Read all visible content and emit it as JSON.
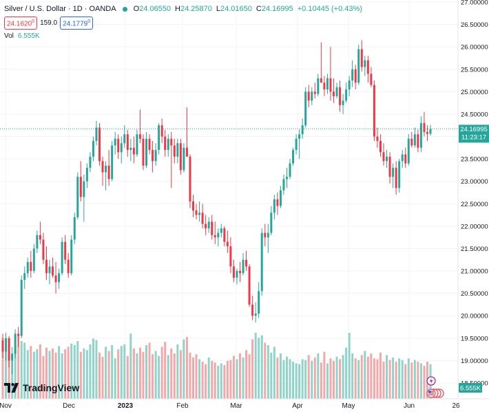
{
  "header": {
    "symbol": "Silver / U.S. Dollar · 1D · OANDA",
    "open_label": "O",
    "open": "24.06550",
    "high_label": "H",
    "high": "24.25870",
    "low_label": "L",
    "low": "24.01650",
    "close_label": "C",
    "close": "24.16995",
    "change": "+0.10445 (+0.43%)",
    "sell_price": "24.1620",
    "sell_sup": "0",
    "spread": "159.0",
    "buy_price": "24.1779",
    "buy_sup": "0"
  },
  "volume_legend": {
    "label": "Vol",
    "value": "6.555K"
  },
  "price_tag": {
    "price": "24.16995",
    "countdown": "11:23:17"
  },
  "volume_tag": "6.555K",
  "logo_text": "TradingView",
  "colors": {
    "up": "#26a69a",
    "down": "#f23645",
    "up_vol": "#8fd3c9",
    "down_vol": "#f4a7a8",
    "grid": "#f0f3fa",
    "text": "#131722"
  },
  "chart_data": {
    "type": "candlestick",
    "y_ticks": [
      "27.00000",
      "26.50000",
      "26.00000",
      "25.50000",
      "25.00000",
      "24.50000",
      "24.00000",
      "23.50000",
      "23.00000",
      "22.50000",
      "22.00000",
      "21.50000",
      "21.00000",
      "20.50000",
      "20.00000",
      "19.50000",
      "19.00000",
      "18.50000"
    ],
    "ylim": [
      18.5,
      27.0
    ],
    "x_ticks": [
      "Nov",
      "Dec",
      "2023",
      "Feb",
      "Mar",
      "Apr",
      "May",
      "Jun",
      "26"
    ],
    "last_price": 24.16995,
    "candles_ohlc": [
      [
        19.45,
        19.6,
        19.05,
        19.2
      ],
      [
        19.2,
        19.62,
        19.0,
        19.5
      ],
      [
        19.5,
        19.55,
        18.85,
        19.0
      ],
      [
        19.0,
        19.3,
        18.7,
        19.15
      ],
      [
        19.15,
        19.7,
        19.05,
        19.6
      ],
      [
        19.6,
        19.75,
        19.3,
        19.55
      ],
      [
        19.55,
        20.9,
        19.5,
        20.8
      ],
      [
        20.8,
        21.1,
        20.6,
        20.95
      ],
      [
        20.95,
        21.3,
        20.85,
        21.2
      ],
      [
        21.2,
        21.45,
        20.85,
        21.0
      ],
      [
        21.0,
        21.6,
        20.95,
        21.5
      ],
      [
        21.5,
        21.9,
        21.4,
        21.8
      ],
      [
        21.8,
        22.1,
        21.6,
        21.7
      ],
      [
        21.7,
        21.85,
        21.15,
        21.25
      ],
      [
        21.25,
        21.55,
        20.8,
        20.95
      ],
      [
        20.95,
        21.25,
        20.7,
        21.1
      ],
      [
        21.1,
        21.3,
        20.85,
        20.9
      ],
      [
        20.9,
        21.2,
        20.5,
        20.75
      ],
      [
        20.75,
        21.05,
        20.6,
        20.95
      ],
      [
        20.95,
        21.75,
        20.9,
        21.65
      ],
      [
        21.65,
        21.8,
        21.15,
        21.25
      ],
      [
        21.25,
        21.4,
        20.85,
        20.95
      ],
      [
        20.95,
        21.8,
        20.9,
        21.7
      ],
      [
        21.7,
        22.3,
        21.6,
        22.2
      ],
      [
        22.2,
        23.2,
        22.15,
        23.1
      ],
      [
        23.1,
        23.45,
        22.55,
        22.65
      ],
      [
        22.65,
        23.15,
        22.1,
        23.0
      ],
      [
        23.0,
        23.4,
        22.85,
        23.3
      ],
      [
        23.3,
        23.65,
        23.2,
        23.55
      ],
      [
        23.55,
        24.0,
        23.45,
        23.9
      ],
      [
        23.9,
        24.35,
        23.8,
        24.2
      ],
      [
        24.2,
        24.3,
        23.35,
        23.45
      ],
      [
        23.45,
        23.55,
        22.9,
        23.2
      ],
      [
        23.2,
        23.45,
        22.8,
        23.35
      ],
      [
        23.35,
        23.7,
        22.9,
        23.05
      ],
      [
        23.05,
        23.9,
        23.0,
        23.8
      ],
      [
        23.8,
        24.1,
        23.6,
        23.95
      ],
      [
        23.95,
        24.05,
        23.5,
        23.65
      ],
      [
        23.65,
        24.0,
        23.4,
        23.85
      ],
      [
        23.85,
        24.25,
        23.75,
        24.05
      ],
      [
        24.05,
        24.15,
        23.55,
        23.7
      ],
      [
        23.7,
        23.95,
        23.45,
        23.75
      ],
      [
        23.75,
        24.0,
        23.4,
        23.6
      ],
      [
        23.6,
        24.15,
        23.55,
        24.05
      ],
      [
        24.05,
        24.6,
        23.85,
        23.95
      ],
      [
        23.95,
        24.05,
        23.25,
        23.35
      ],
      [
        23.35,
        24.1,
        23.3,
        23.95
      ],
      [
        23.95,
        24.05,
        23.6,
        23.7
      ],
      [
        23.7,
        23.9,
        23.2,
        23.45
      ],
      [
        23.45,
        23.85,
        23.35,
        23.7
      ],
      [
        23.7,
        24.3,
        23.6,
        24.25
      ],
      [
        24.25,
        24.4,
        23.85,
        24.0
      ],
      [
        24.0,
        24.15,
        23.55,
        23.7
      ],
      [
        23.7,
        24.05,
        23.55,
        23.95
      ],
      [
        23.95,
        24.1,
        22.85,
        23.8
      ],
      [
        23.8,
        23.95,
        23.4,
        23.55
      ],
      [
        23.55,
        23.95,
        23.4,
        23.85
      ],
      [
        23.85,
        23.95,
        23.15,
        23.25
      ],
      [
        23.25,
        23.85,
        23.2,
        23.75
      ],
      [
        23.75,
        24.65,
        23.7,
        23.55
      ],
      [
        23.55,
        23.6,
        22.4,
        22.55
      ],
      [
        22.55,
        22.7,
        22.2,
        22.35
      ],
      [
        22.35,
        22.5,
        22.15,
        22.25
      ],
      [
        22.25,
        22.55,
        22.1,
        22.3
      ],
      [
        22.3,
        22.5,
        21.95,
        22.05
      ],
      [
        22.05,
        22.25,
        21.8,
        21.95
      ],
      [
        21.95,
        22.2,
        21.85,
        22.1
      ],
      [
        22.1,
        22.25,
        21.7,
        21.8
      ],
      [
        21.8,
        22.1,
        21.6,
        21.75
      ],
      [
        21.75,
        21.95,
        21.55,
        21.85
      ],
      [
        21.85,
        22.05,
        21.75,
        21.95
      ],
      [
        21.95,
        22.0,
        21.55,
        21.65
      ],
      [
        21.65,
        21.9,
        21.4,
        21.55
      ],
      [
        21.55,
        21.75,
        20.95,
        21.1
      ],
      [
        21.1,
        21.25,
        20.75,
        20.85
      ],
      [
        20.85,
        21.05,
        20.7,
        21.0
      ],
      [
        21.0,
        21.2,
        20.75,
        20.95
      ],
      [
        20.95,
        21.4,
        20.9,
        21.25
      ],
      [
        21.25,
        21.45,
        21.0,
        21.1
      ],
      [
        21.1,
        21.15,
        20.2,
        20.25
      ],
      [
        20.25,
        20.45,
        19.9,
        20.0
      ],
      [
        20.0,
        20.3,
        19.85,
        20.05
      ],
      [
        20.05,
        20.75,
        19.95,
        20.55
      ],
      [
        20.55,
        21.95,
        20.45,
        21.85
      ],
      [
        21.85,
        22.05,
        21.55,
        21.75
      ],
      [
        21.75,
        22.05,
        21.4,
        21.85
      ],
      [
        21.85,
        22.45,
        21.8,
        22.3
      ],
      [
        22.3,
        22.7,
        22.15,
        22.6
      ],
      [
        22.6,
        22.75,
        22.25,
        22.45
      ],
      [
        22.45,
        22.9,
        22.4,
        22.8
      ],
      [
        22.8,
        23.15,
        22.7,
        23.05
      ],
      [
        23.05,
        23.3,
        22.85,
        23.1
      ],
      [
        23.1,
        23.5,
        23.05,
        23.4
      ],
      [
        23.4,
        23.75,
        23.35,
        23.7
      ],
      [
        23.7,
        24.05,
        23.6,
        23.95
      ],
      [
        23.95,
        24.15,
        23.5,
        24.05
      ],
      [
        24.05,
        24.4,
        23.95,
        24.25
      ],
      [
        24.25,
        25.1,
        24.2,
        25.0
      ],
      [
        25.0,
        25.15,
        24.65,
        24.8
      ],
      [
        24.8,
        25.1,
        24.7,
        25.0
      ],
      [
        25.0,
        25.2,
        24.85,
        24.95
      ],
      [
        24.95,
        25.4,
        24.9,
        25.3
      ],
      [
        25.3,
        26.1,
        25.2,
        25.2
      ],
      [
        25.2,
        25.35,
        24.9,
        25.05
      ],
      [
        25.05,
        25.4,
        24.95,
        25.3
      ],
      [
        25.3,
        26.0,
        24.8,
        25.0
      ],
      [
        25.0,
        25.3,
        24.75,
        24.9
      ],
      [
        24.9,
        25.2,
        24.85,
        25.1
      ],
      [
        25.1,
        25.25,
        24.55,
        24.7
      ],
      [
        24.7,
        24.95,
        24.5,
        24.8
      ],
      [
        24.8,
        25.2,
        24.75,
        25.05
      ],
      [
        25.05,
        25.35,
        24.9,
        25.25
      ],
      [
        25.25,
        25.7,
        25.1,
        25.5
      ],
      [
        25.5,
        25.6,
        25.05,
        25.2
      ],
      [
        25.2,
        26.05,
        25.15,
        25.95
      ],
      [
        25.95,
        26.15,
        25.45,
        25.55
      ],
      [
        25.55,
        25.8,
        25.35,
        25.7
      ],
      [
        25.7,
        25.8,
        25.2,
        25.4
      ],
      [
        25.4,
        25.55,
        25.1,
        25.15
      ],
      [
        25.15,
        25.25,
        23.9,
        24.0
      ],
      [
        24.0,
        24.2,
        23.75,
        23.9
      ],
      [
        23.9,
        24.05,
        23.55,
        23.65
      ],
      [
        23.65,
        23.85,
        23.35,
        23.45
      ],
      [
        23.45,
        23.7,
        23.3,
        23.55
      ],
      [
        23.55,
        23.65,
        22.95,
        23.1
      ],
      [
        23.1,
        23.4,
        22.85,
        23.3
      ],
      [
        23.3,
        23.45,
        22.7,
        22.85
      ],
      [
        22.85,
        23.5,
        22.75,
        23.45
      ],
      [
        23.45,
        23.7,
        23.3,
        23.6
      ],
      [
        23.6,
        23.75,
        23.3,
        23.4
      ],
      [
        23.4,
        24.05,
        23.35,
        23.95
      ],
      [
        23.95,
        24.1,
        23.75,
        23.8
      ],
      [
        23.8,
        24.2,
        23.75,
        24.05
      ],
      [
        24.05,
        24.15,
        23.65,
        23.75
      ],
      [
        23.75,
        24.45,
        23.65,
        24.3
      ],
      [
        24.3,
        24.55,
        24.0,
        24.1
      ],
      [
        24.1,
        24.25,
        23.9,
        24.06
      ],
      [
        24.06,
        24.26,
        24.02,
        24.17
      ]
    ],
    "volumes": [
      0.74,
      0.63,
      0.71,
      0.55,
      0.62,
      0.77,
      0.7,
      0.68,
      0.59,
      0.64,
      0.57,
      0.6,
      0.66,
      0.52,
      0.62,
      0.58,
      0.61,
      0.56,
      0.64,
      0.55,
      0.6,
      0.63,
      0.67,
      0.65,
      0.7,
      0.57,
      0.61,
      0.59,
      0.66,
      0.73,
      0.71,
      0.56,
      0.51,
      0.63,
      0.58,
      0.65,
      0.49,
      0.6,
      0.64,
      0.66,
      0.52,
      0.79,
      0.61,
      0.55,
      0.62,
      0.57,
      0.65,
      0.68,
      0.54,
      0.58,
      0.52,
      0.63,
      0.69,
      0.53,
      0.61,
      0.55,
      0.66,
      0.59,
      0.72,
      0.75,
      0.56,
      0.5,
      0.54,
      0.48,
      0.45,
      0.42,
      0.5,
      0.46,
      0.44,
      0.4,
      0.43,
      0.41,
      0.46,
      0.47,
      0.52,
      0.48,
      0.55,
      0.5,
      0.59,
      0.54,
      0.72,
      0.8,
      0.74,
      0.77,
      0.68,
      0.65,
      0.56,
      0.63,
      0.5,
      0.55,
      0.47,
      0.51,
      0.48,
      0.45,
      0.43,
      0.42,
      0.48,
      0.47,
      0.53,
      0.46,
      0.5,
      0.55,
      0.44,
      0.57,
      0.43,
      0.49,
      0.46,
      0.51,
      0.48,
      0.53,
      0.62,
      0.8,
      0.55,
      0.49,
      0.47,
      0.53,
      0.58,
      0.51,
      0.55,
      0.49,
      0.48,
      0.56,
      0.45,
      0.53,
      0.47,
      0.5,
      0.45,
      0.49,
      0.47,
      0.42,
      0.49,
      0.44,
      0.47,
      0.45,
      0.43,
      0.4,
      0.45,
      0.42
    ]
  }
}
